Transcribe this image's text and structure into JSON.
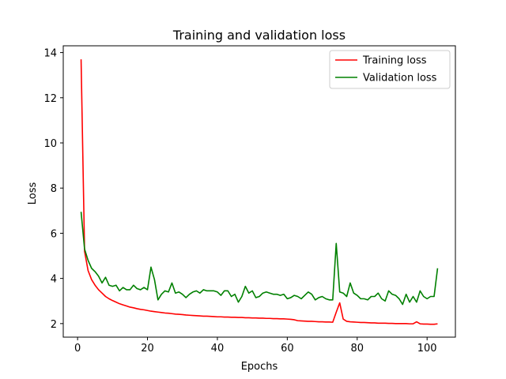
{
  "chart_data": {
    "type": "line",
    "title": "Training and validation loss",
    "xlabel": "Epochs",
    "ylabel": "Loss",
    "xlim": [
      -4.1,
      108.1
    ],
    "ylim": [
      1.4,
      14.3
    ],
    "xticks": [
      0,
      20,
      40,
      60,
      80,
      100
    ],
    "yticks": [
      2,
      4,
      6,
      8,
      10,
      12,
      14
    ],
    "grid": false,
    "legend": "top-right",
    "x": [
      1,
      2,
      3,
      4,
      5,
      6,
      7,
      8,
      9,
      10,
      11,
      12,
      13,
      14,
      15,
      16,
      17,
      18,
      19,
      20,
      21,
      22,
      23,
      24,
      25,
      26,
      27,
      28,
      29,
      30,
      31,
      32,
      33,
      34,
      35,
      36,
      37,
      38,
      39,
      40,
      41,
      42,
      43,
      44,
      45,
      46,
      47,
      48,
      49,
      50,
      51,
      52,
      53,
      54,
      55,
      56,
      57,
      58,
      59,
      60,
      61,
      62,
      63,
      64,
      65,
      66,
      67,
      68,
      69,
      70,
      71,
      72,
      73,
      74,
      75,
      76,
      77,
      78,
      79,
      80,
      81,
      82,
      83,
      84,
      85,
      86,
      87,
      88,
      89,
      90,
      91,
      92,
      93,
      94,
      95,
      96,
      97,
      98,
      99,
      100,
      101,
      102,
      103
    ],
    "series": [
      {
        "name": "Training loss",
        "color": "#ff0000",
        "values": [
          13.7,
          5.2,
          4.35,
          3.95,
          3.7,
          3.5,
          3.35,
          3.2,
          3.1,
          3.02,
          2.95,
          2.88,
          2.83,
          2.78,
          2.73,
          2.7,
          2.66,
          2.63,
          2.61,
          2.58,
          2.55,
          2.53,
          2.51,
          2.49,
          2.47,
          2.46,
          2.44,
          2.42,
          2.41,
          2.4,
          2.38,
          2.37,
          2.36,
          2.35,
          2.34,
          2.33,
          2.33,
          2.32,
          2.31,
          2.3,
          2.3,
          2.29,
          2.29,
          2.28,
          2.28,
          2.27,
          2.27,
          2.26,
          2.26,
          2.25,
          2.25,
          2.24,
          2.24,
          2.23,
          2.23,
          2.22,
          2.22,
          2.21,
          2.21,
          2.2,
          2.19,
          2.17,
          2.13,
          2.12,
          2.11,
          2.1,
          2.1,
          2.09,
          2.08,
          2.08,
          2.07,
          2.07,
          2.06,
          2.5,
          2.92,
          2.2,
          2.1,
          2.08,
          2.07,
          2.06,
          2.05,
          2.05,
          2.04,
          2.03,
          2.03,
          2.02,
          2.02,
          2.02,
          2.01,
          2.01,
          2.0,
          2.0,
          2.0,
          2.0,
          1.99,
          1.99,
          2.08,
          1.99,
          1.98,
          1.98,
          1.97,
          1.97,
          1.99
        ]
      },
      {
        "name": "Validation loss",
        "color": "#008000",
        "values": [
          6.95,
          5.3,
          4.8,
          4.45,
          4.3,
          4.1,
          3.8,
          4.05,
          3.7,
          3.65,
          3.7,
          3.45,
          3.6,
          3.5,
          3.5,
          3.7,
          3.55,
          3.5,
          3.6,
          3.5,
          4.5,
          3.95,
          3.05,
          3.3,
          3.45,
          3.4,
          3.8,
          3.35,
          3.4,
          3.3,
          3.15,
          3.3,
          3.4,
          3.45,
          3.35,
          3.5,
          3.45,
          3.45,
          3.45,
          3.4,
          3.25,
          3.45,
          3.45,
          3.2,
          3.3,
          2.95,
          3.2,
          3.65,
          3.35,
          3.45,
          3.15,
          3.2,
          3.35,
          3.4,
          3.35,
          3.3,
          3.3,
          3.25,
          3.3,
          3.1,
          3.15,
          3.25,
          3.2,
          3.1,
          3.25,
          3.4,
          3.3,
          3.05,
          3.15,
          3.2,
          3.1,
          3.05,
          3.05,
          5.55,
          3.4,
          3.35,
          3.2,
          3.8,
          3.35,
          3.25,
          3.1,
          3.1,
          3.05,
          3.2,
          3.2,
          3.35,
          3.1,
          3.0,
          3.45,
          3.3,
          3.25,
          3.1,
          2.85,
          3.3,
          2.95,
          3.2,
          2.95,
          3.45,
          3.2,
          3.1,
          3.2,
          3.2,
          4.45
        ]
      }
    ]
  }
}
